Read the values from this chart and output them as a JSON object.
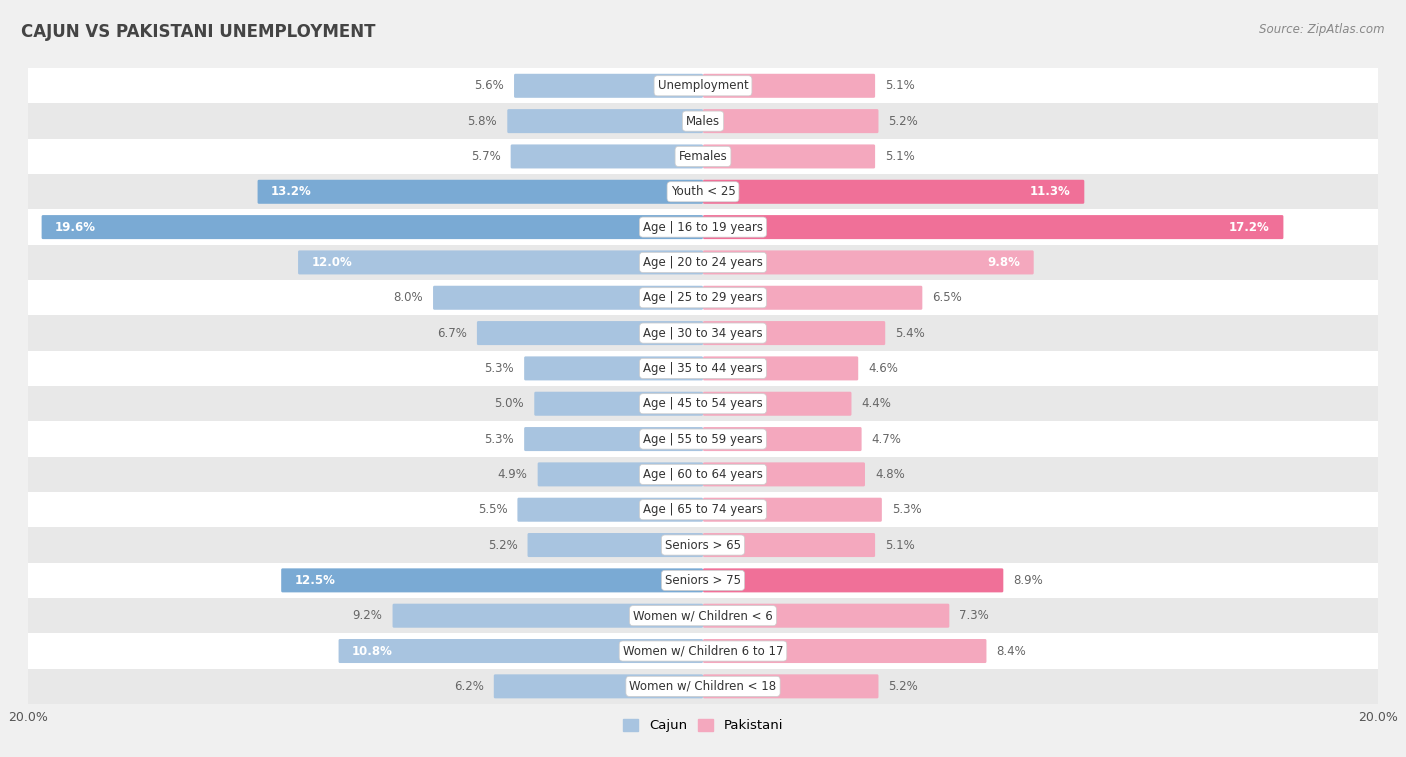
{
  "title": "Cajun vs Pakistani Unemployment",
  "source": "Source: ZipAtlas.com",
  "categories": [
    "Unemployment",
    "Males",
    "Females",
    "Youth < 25",
    "Age | 16 to 19 years",
    "Age | 20 to 24 years",
    "Age | 25 to 29 years",
    "Age | 30 to 34 years",
    "Age | 35 to 44 years",
    "Age | 45 to 54 years",
    "Age | 55 to 59 years",
    "Age | 60 to 64 years",
    "Age | 65 to 74 years",
    "Seniors > 65",
    "Seniors > 75",
    "Women w/ Children < 6",
    "Women w/ Children 6 to 17",
    "Women w/ Children < 18"
  ],
  "cajun": [
    5.6,
    5.8,
    5.7,
    13.2,
    19.6,
    12.0,
    8.0,
    6.7,
    5.3,
    5.0,
    5.3,
    4.9,
    5.5,
    5.2,
    12.5,
    9.2,
    10.8,
    6.2
  ],
  "pakistani": [
    5.1,
    5.2,
    5.1,
    11.3,
    17.2,
    9.8,
    6.5,
    5.4,
    4.6,
    4.4,
    4.7,
    4.8,
    5.3,
    5.1,
    8.9,
    7.3,
    8.4,
    5.2
  ],
  "cajun_color_normal": "#a8c4e0",
  "cajun_color_highlight": "#7aaad4",
  "pakistani_color_normal": "#f4a8be",
  "pakistani_color_highlight": "#f07098",
  "highlight_rows": [
    3,
    4,
    14
  ],
  "axis_limit": 20.0,
  "bar_height": 0.68,
  "bg_color": "#f0f0f0",
  "row_color_even": "#ffffff",
  "row_color_odd": "#e8e8e8",
  "legend_cajun": "Cajun",
  "legend_pakistani": "Pakistani",
  "label_threshold": 9.5,
  "inside_label_color": "#ffffff",
  "outside_label_color": "#666666"
}
